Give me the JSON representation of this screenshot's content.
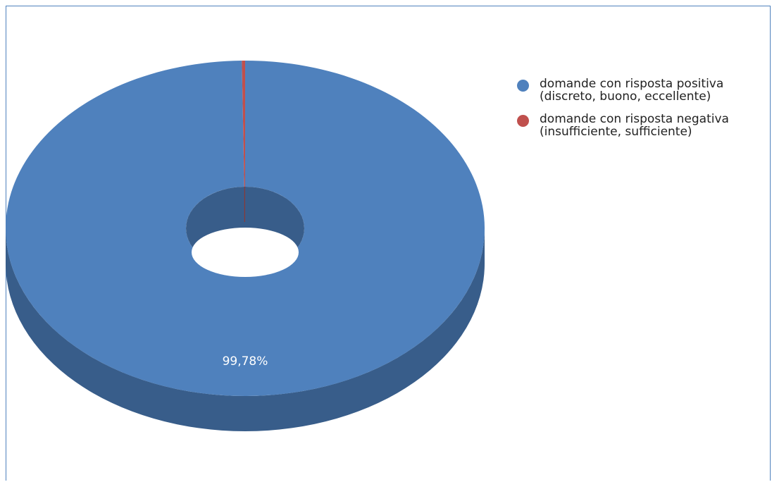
{
  "chart_data": {
    "type": "pie",
    "style": "3d-donut",
    "title": "",
    "legend_position": "right",
    "series": [
      {
        "name": "domande con risposta positiva (discreto, buono, eccellente)",
        "legend_lines": [
          "domande con risposta positiva",
          "(discreto, buono, eccellente)"
        ],
        "value": 99.78,
        "label": "99,78%",
        "color": "#4F81BD",
        "side_color": "#385D8A"
      },
      {
        "name": "domande con risposta negativa (insufficiente, sufficiente)",
        "legend_lines": [
          "domande con risposta negativa",
          "(insufficiente, sufficiente)"
        ],
        "value": 0.22,
        "label": "",
        "color": "#C0504D",
        "side_color": "#8C3836"
      }
    ]
  }
}
